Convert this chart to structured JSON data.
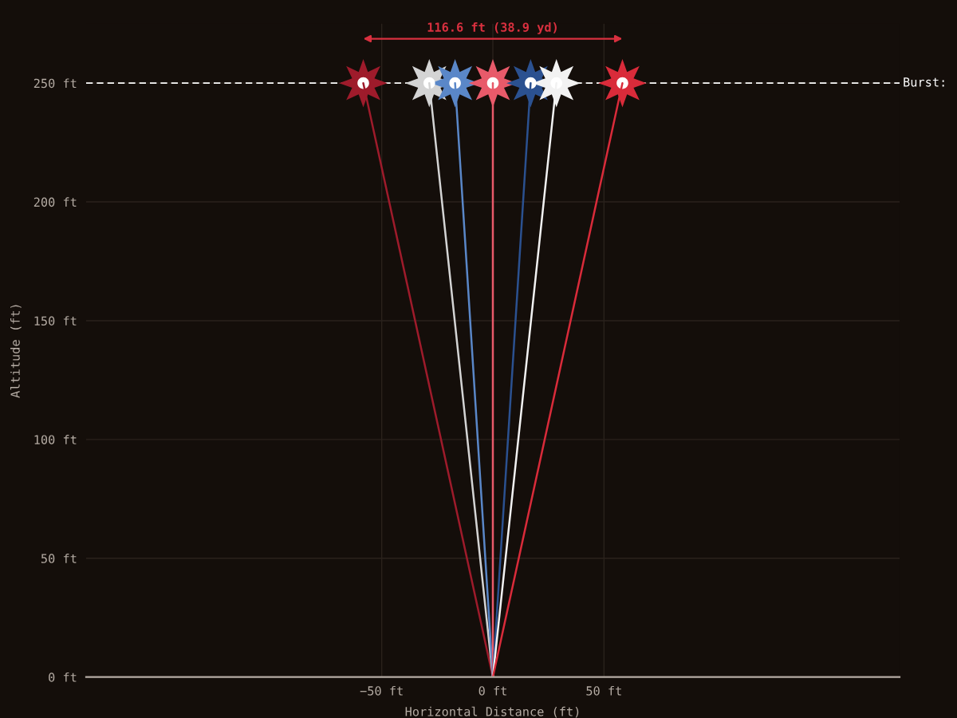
{
  "chart_data": {
    "type": "line",
    "xlabel": "Horizontal Distance (ft)",
    "ylabel": "Altitude (ft)",
    "series": [
      {
        "color": "#9e1b2b",
        "x": [
          0,
          -58.3
        ],
        "values": [
          0,
          250
        ]
      },
      {
        "color": "#d4d4d4",
        "x": [
          0,
          -28.6
        ],
        "values": [
          0,
          250
        ]
      },
      {
        "color": "#5a87c8",
        "x": [
          0,
          -17.0
        ],
        "values": [
          0,
          250
        ]
      },
      {
        "color": "#e85a6a",
        "x": [
          0,
          0
        ],
        "values": [
          0,
          250
        ]
      },
      {
        "color": "#2b5190",
        "x": [
          0,
          17.0
        ],
        "values": [
          0,
          250
        ]
      },
      {
        "color": "#f2f2f2",
        "x": [
          0,
          28.6
        ],
        "values": [
          0,
          250
        ]
      },
      {
        "color": "#d92b3a",
        "x": [
          0,
          58.3
        ],
        "values": [
          0,
          250
        ]
      },
      {
        "type": "scatter",
        "marker": "star",
        "x": [
          -58.3,
          -28.6,
          -17.0,
          0,
          17.0,
          28.6,
          58.3
        ],
        "values": [
          250,
          250,
          250,
          250,
          250,
          250,
          250
        ],
        "colors": [
          "#9e1b2b",
          "#d4d4d4",
          "#5a87c8",
          "#e85a6a",
          "#2b5190",
          "#f2f2f2",
          "#d92b3a"
        ]
      }
    ],
    "xlim": [
      -183,
      183
    ],
    "ylim": [
      0,
      275
    ],
    "xticks": [
      {
        "value": -50,
        "label": "−50 ft"
      },
      {
        "value": 0,
        "label": "0 ft"
      },
      {
        "value": 50,
        "label": "50 ft"
      }
    ],
    "yticks": [
      {
        "value": 0,
        "label": "0 ft"
      },
      {
        "value": 50,
        "label": "50 ft"
      },
      {
        "value": 100,
        "label": "100 ft"
      },
      {
        "value": 150,
        "label": "150 ft"
      },
      {
        "value": 200,
        "label": "200 ft"
      },
      {
        "value": 250,
        "label": "250 ft"
      }
    ],
    "ref_lines": [
      {
        "axis": "y",
        "value": 250,
        "label": "Burst:",
        "color": "#ffffff",
        "line_style": "dashed"
      }
    ],
    "annotations": [
      "116.6 ft (38.9 yd)"
    ],
    "grid": true
  }
}
